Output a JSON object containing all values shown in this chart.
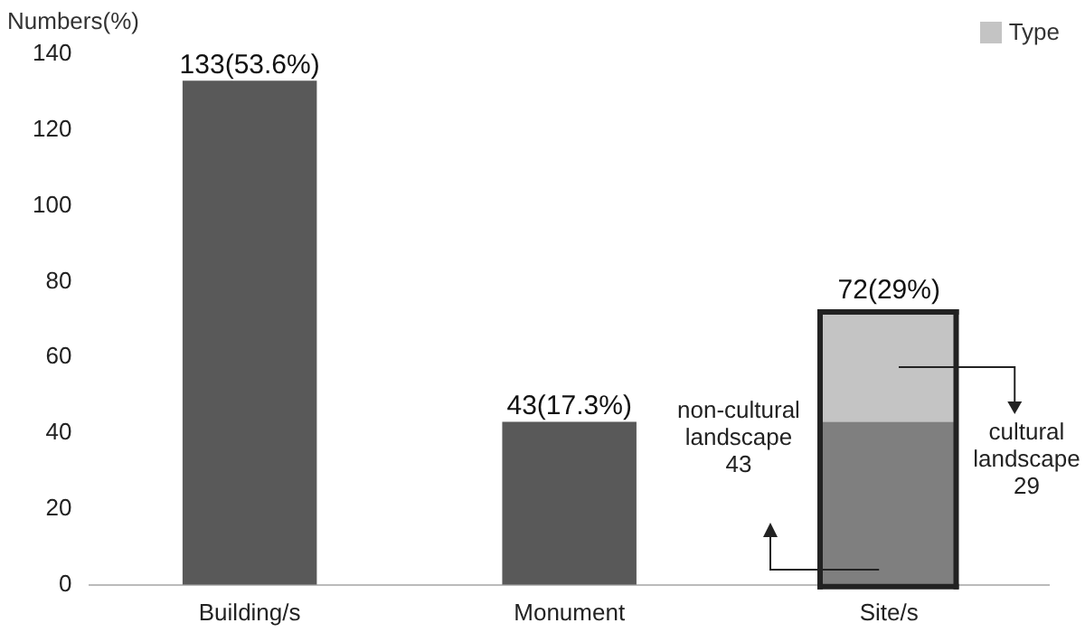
{
  "chart_data": {
    "type": "bar",
    "ylabel": "Numbers(%)",
    "categories": [
      "Building/s",
      "Monument",
      "Site/s"
    ],
    "stacked": true,
    "series": [
      {
        "colors": [
          "#595959",
          "#595959",
          "#7f7f7f"
        ],
        "values": [
          133,
          43,
          43
        ]
      },
      {
        "name": "Type",
        "color": "#c4c4c4",
        "values": [
          null,
          null,
          29
        ]
      }
    ],
    "totals": [
      "133(53.6%)",
      "43(17.3%)",
      "72(29%)"
    ],
    "ylim": [
      0,
      140
    ],
    "yticks": [
      0,
      20,
      40,
      60,
      80,
      100,
      120,
      140
    ],
    "grid": false,
    "legend": "top right",
    "annotations": [
      "non-cultural landscape 43",
      "cultural landscape 29"
    ]
  }
}
